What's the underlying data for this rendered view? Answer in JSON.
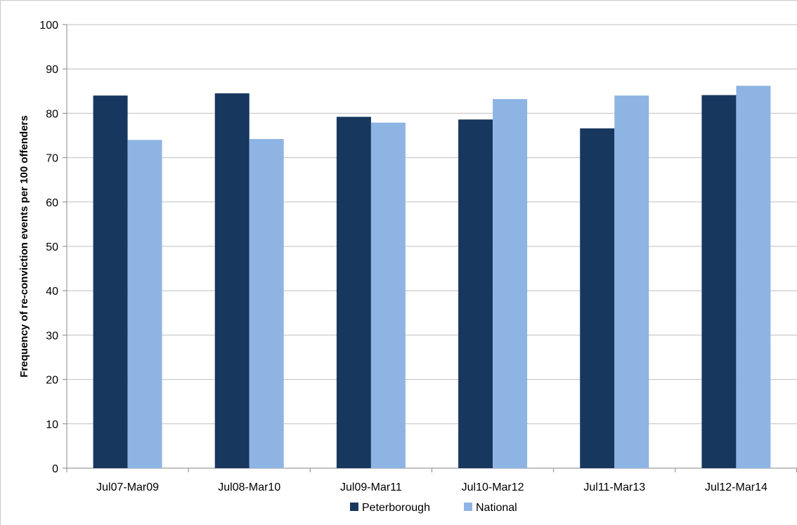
{
  "chart_data": {
    "type": "bar",
    "title": "",
    "xlabel": "",
    "ylabel": "Frequency of re-conviction events per 100 offenders",
    "categories": [
      "Jul07-Mar09",
      "Jul08-Mar10",
      "Jul09-Mar11",
      "Jul10-Mar12",
      "Jul11-Mar13",
      "Jul12-Mar14"
    ],
    "series": [
      {
        "name": "Peterborough",
        "color": "#17375e",
        "values": [
          84.0,
          84.5,
          79.2,
          78.6,
          76.6,
          84.1
        ]
      },
      {
        "name": "National",
        "color": "#8eb4e3",
        "values": [
          74.0,
          74.2,
          77.9,
          83.2,
          84.0,
          86.2
        ]
      }
    ],
    "ylim": [
      0,
      100
    ],
    "yticks": [
      0,
      10,
      20,
      30,
      40,
      50,
      60,
      70,
      80,
      90,
      100
    ],
    "grid": true,
    "legend_position": "bottom"
  }
}
